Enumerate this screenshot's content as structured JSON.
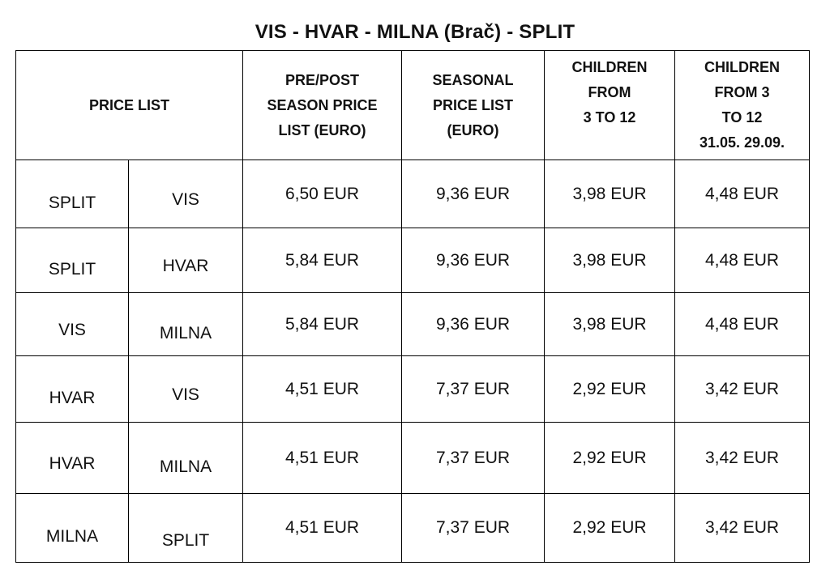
{
  "title": "VIS - HVAR - MILNA (Brač) - SPLIT",
  "headers": {
    "price_list": "PRICE LIST",
    "pre_post": [
      "PRE/POST",
      "SEASON PRICE",
      "LIST (EURO)"
    ],
    "seasonal": [
      "SEASONAL",
      "PRICE LIST",
      "(EURO)"
    ],
    "children": [
      "CHILDREN",
      "FROM",
      "3 TO 12"
    ],
    "children_dates": [
      "CHILDREN",
      "FROM 3",
      "TO 12",
      "31.05. 29.09."
    ]
  },
  "rows": [
    {
      "from": "SPLIT",
      "to": "VIS",
      "pre_post": "6,50 EUR",
      "seasonal": "9,36 EUR",
      "children": "3,98 EUR",
      "children_dates": "4,48 EUR"
    },
    {
      "from": "SPLIT",
      "to": "HVAR",
      "pre_post": "5,84 EUR",
      "seasonal": "9,36 EUR",
      "children": "3,98 EUR",
      "children_dates": "4,48 EUR"
    },
    {
      "from": "VIS",
      "to": "MILNA",
      "pre_post": "5,84 EUR",
      "seasonal": "9,36 EUR",
      "children": "3,98 EUR",
      "children_dates": "4,48 EUR"
    },
    {
      "from": "HVAR",
      "to": "VIS",
      "pre_post": "4,51 EUR",
      "seasonal": "7,37 EUR",
      "children": "2,92 EUR",
      "children_dates": "3,42 EUR"
    },
    {
      "from": "HVAR",
      "to": "MILNA",
      "pre_post": "4,51 EUR",
      "seasonal": "7,37 EUR",
      "children": "2,92 EUR",
      "children_dates": "3,42 EUR"
    },
    {
      "from": "MILNA",
      "to": "SPLIT",
      "pre_post": "4,51 EUR",
      "seasonal": "7,37 EUR",
      "children": "2,92 EUR",
      "children_dates": "3,42 EUR"
    }
  ]
}
